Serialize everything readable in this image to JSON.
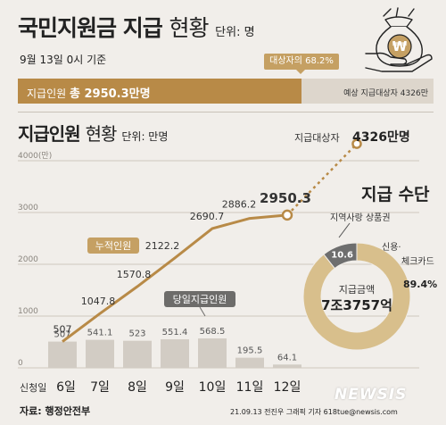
{
  "header": {
    "title_bold": "국민지원금 지급",
    "title_light": "현황",
    "title_unit": "단위: 명",
    "date": "9월 13일 0시 기준"
  },
  "progress": {
    "ratio_label": "대상자의 68.2%",
    "ratio": 0.682,
    "paid_prefix": "지급인원",
    "paid_value": "총 2950.3만명",
    "target_text": "예상 지급대상자 4326만"
  },
  "chart_section": {
    "title_bold": "지급인원",
    "title_light": "현황",
    "unit": "단위: 만명"
  },
  "colors": {
    "bar": "#d2ccc4",
    "line": "#b88a47",
    "accent": "#c5a063",
    "dark_label": "#6d6c6a",
    "donut_main": "#d8bf8c",
    "donut_minor": "#6e6e6e"
  },
  "chart_data": [
    {
      "type": "bar",
      "categories": [
        "6일",
        "7일",
        "8일",
        "9일",
        "10일",
        "11일",
        "12일"
      ],
      "category_prefix": "신청일",
      "series": [
        {
          "name": "당일지급인원",
          "values": [
            507,
            541.1,
            523,
            551.4,
            568.5,
            195.5,
            64.1
          ]
        }
      ],
      "value_labels": [
        "507",
        "541.1",
        "523",
        "551.4",
        "568.5",
        "195.5",
        "64.1"
      ],
      "ylim": [
        0,
        4000
      ],
      "yticks": [
        "4000(만)",
        "3000",
        "2000",
        "1000",
        "0"
      ]
    },
    {
      "type": "line",
      "categories": [
        "6일",
        "7일",
        "8일",
        "9일",
        "10일",
        "11일",
        "12일"
      ],
      "series": [
        {
          "name": "누적인원",
          "values": [
            507,
            1047.8,
            1570.8,
            2122.2,
            2690.7,
            2886.2,
            2950.3
          ]
        }
      ],
      "value_labels": [
        "507",
        "1047.8",
        "1570.8",
        "2122.2",
        "2690.7",
        "2886.2",
        "2950.3"
      ],
      "target": {
        "label": "지급대상자",
        "value_label": "4326만명",
        "value": 4326
      },
      "ylim": [
        0,
        4000
      ]
    },
    {
      "type": "pie",
      "title": "지급 수단",
      "slices": [
        {
          "label": "신용·체크카드",
          "value": 89.4,
          "value_label": "89.4%"
        },
        {
          "label": "지역사랑 상품권",
          "value": 10.6,
          "value_label": "10.6"
        }
      ],
      "center_label": "지급금액",
      "center_value": "7조3757억"
    }
  ],
  "footer": {
    "source": "자료: 행정안전부",
    "credit": "21.09.13 전진우 그래픽 기자 618tue@newsis.com",
    "watermark": "NEWSIS"
  },
  "icon": "money-bag-won-icon"
}
